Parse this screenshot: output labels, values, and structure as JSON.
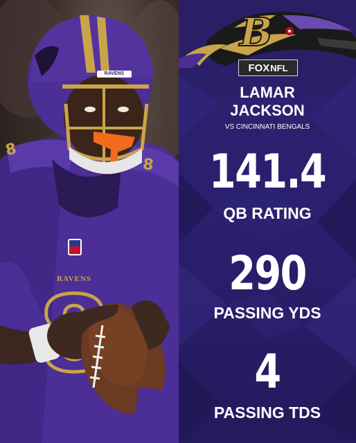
{
  "broadcaster": {
    "fox": "FOX",
    "league": "NFL"
  },
  "player": {
    "first_name": "LAMAR",
    "last_name": "JACKSON"
  },
  "opponent": "VS CINCINNATI BENGALS",
  "jersey_text": "RAVENS",
  "helmet_text": "RAVENS",
  "stats": [
    {
      "value": "141.4",
      "label": "QB RATING"
    },
    {
      "value": "290",
      "label": "PASSING YDS"
    },
    {
      "value": "4",
      "label": "PASSING TDS"
    }
  ],
  "colors": {
    "panel_purple": "#2a1f66",
    "jersey_purple": "#4b2e96",
    "helmet_gold": "#c9a44a",
    "mouthguard_orange": "#f26a1b"
  }
}
